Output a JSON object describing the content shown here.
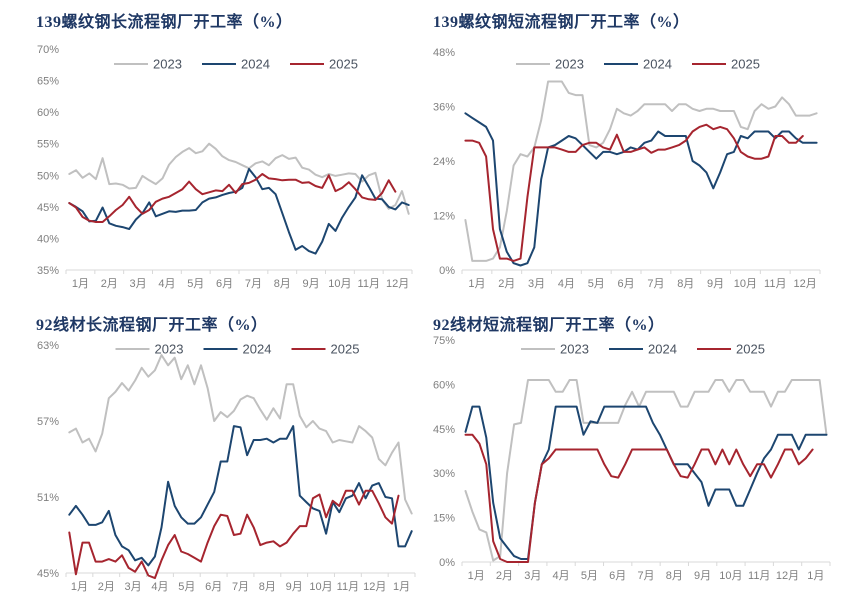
{
  "page_title": "钢厂开工率图表",
  "colors": {
    "title_text": "#1f3864",
    "legend_text": "#4a5360",
    "axis_line": "#d9d9d9",
    "tick_text": "#7f7f7f",
    "series_2023": "#c0c0c0",
    "series_2024": "#1d4670",
    "series_2025": "#a6252f",
    "background": "#ffffff"
  },
  "chart_data": [
    {
      "type": "line",
      "title": "139螺纹钢长流程钢厂开工率（%）",
      "ylim": [
        35,
        70
      ],
      "yticks": [
        35,
        40,
        45,
        50,
        55,
        60,
        65,
        70
      ],
      "ytick_suffix": "%",
      "xlabels": [
        "1月",
        "2月",
        "3月",
        "4月",
        "5月",
        "6月",
        "7月",
        "8月",
        "9月",
        "10月",
        "11月",
        "12月"
      ],
      "x_span": 52,
      "grid": false,
      "legend_position": "top-center",
      "series": [
        {
          "name": "2023",
          "color": "#c0c0c0",
          "values": [
            50.2,
            50.8,
            49.6,
            50.3,
            49.4,
            52.7,
            48.6,
            48.7,
            48.5,
            47.9,
            48.0,
            49.9,
            49.2,
            48.6,
            49.5,
            51.7,
            52.9,
            53.7,
            54.3,
            53.5,
            53.8,
            55.0,
            54.2,
            53.0,
            52.4,
            52.1,
            51.6,
            51.1,
            51.9,
            52.2,
            51.6,
            52.7,
            53.2,
            52.6,
            52.8,
            51.2,
            50.9,
            50.1,
            49.7,
            50.2,
            49.9,
            50.1,
            50.3,
            50.2,
            49.0,
            50.0,
            50.4,
            46.2,
            44.7,
            45.3,
            47.5,
            43.9
          ]
        },
        {
          "name": "2024",
          "color": "#1d4670",
          "values": [
            45.6,
            45.0,
            44.3,
            42.7,
            42.8,
            44.9,
            42.4,
            42.0,
            41.8,
            41.5,
            43.0,
            44.0,
            45.7,
            43.5,
            43.9,
            44.3,
            44.2,
            44.4,
            44.4,
            44.5,
            45.7,
            46.3,
            46.5,
            46.9,
            47.2,
            47.4,
            48.0,
            51.0,
            49.7,
            47.8,
            48.0,
            47.0,
            44.0,
            41.0,
            38.2,
            38.8,
            38.0,
            37.6,
            39.5,
            42.3,
            41.2,
            43.3,
            45.0,
            46.5,
            50.0,
            48.2,
            46.3,
            46.2,
            45.0,
            44.6,
            45.7,
            45.3
          ]
        },
        {
          "name": "2025",
          "color": "#a6252f",
          "values": [
            45.6,
            44.9,
            43.4,
            42.8,
            42.6,
            42.6,
            43.5,
            44.5,
            45.3,
            46.6,
            45.0,
            43.9,
            44.5,
            45.8,
            46.3,
            46.6,
            47.2,
            47.8,
            49.0,
            47.8,
            47.0,
            47.3,
            47.6,
            47.5,
            48.5,
            47.2,
            48.6,
            48.8,
            49.3,
            50.2,
            49.5,
            49.4,
            49.2,
            49.3,
            49.3,
            48.8,
            48.9,
            48.3,
            48.0,
            50.0,
            47.5,
            48.0,
            48.9,
            47.8,
            46.5,
            46.2,
            46.1,
            47.2,
            49.2,
            47.4
          ]
        }
      ]
    },
    {
      "type": "line",
      "title": "139螺纹钢短流程钢厂开工率（%）",
      "ylim": [
        0,
        48
      ],
      "yticks": [
        0,
        12,
        24,
        36,
        48
      ],
      "ytick_suffix": "%",
      "xlabels": [
        "1月",
        "2月",
        "3月",
        "4月",
        "5月",
        "6月",
        "7月",
        "8月",
        "9月",
        "10月",
        "11月",
        "12月"
      ],
      "x_span": 52,
      "grid": false,
      "legend_position": "top-center",
      "series": [
        {
          "name": "2023",
          "color": "#c0c0c0",
          "values": [
            11.0,
            2.0,
            2.0,
            2.0,
            2.5,
            5.0,
            13.0,
            23.0,
            25.5,
            25.0,
            27.0,
            33.0,
            41.5,
            41.5,
            41.5,
            39.0,
            38.5,
            38.5,
            27.5,
            27.0,
            28.0,
            31.0,
            35.5,
            34.5,
            34.0,
            35.0,
            36.5,
            36.5,
            36.5,
            36.5,
            35.0,
            36.5,
            36.5,
            35.5,
            35.0,
            35.5,
            35.5,
            35.0,
            35.0,
            35.0,
            31.5,
            31.0,
            35.0,
            36.5,
            35.5,
            36.0,
            38.0,
            36.5,
            34.0,
            34.0,
            34.0,
            34.5
          ]
        },
        {
          "name": "2024",
          "color": "#1d4670",
          "values": [
            34.5,
            33.5,
            32.5,
            31.5,
            28.5,
            9.0,
            4.0,
            1.5,
            1.0,
            1.5,
            5.0,
            20.0,
            27.0,
            27.5,
            28.5,
            29.5,
            29.0,
            27.5,
            26.0,
            24.5,
            26.0,
            26.0,
            25.5,
            26.0,
            27.0,
            26.5,
            28.0,
            28.5,
            30.5,
            29.5,
            29.5,
            29.5,
            29.5,
            24.0,
            23.0,
            21.5,
            18.0,
            21.5,
            25.5,
            26.0,
            29.5,
            29.0,
            30.5,
            30.5,
            30.5,
            29.0,
            30.5,
            30.5,
            29.0,
            28.0,
            28.0,
            28.0
          ]
        },
        {
          "name": "2025",
          "color": "#a6252f",
          "values": [
            28.5,
            28.5,
            28.0,
            25.0,
            9.0,
            2.5,
            2.5,
            2.0,
            2.5,
            16.0,
            27.0,
            27.0,
            27.0,
            27.0,
            26.5,
            26.0,
            26.0,
            27.5,
            28.0,
            28.0,
            27.0,
            26.5,
            29.8,
            26.0,
            26.0,
            26.5,
            27.0,
            25.8,
            26.5,
            26.5,
            27.0,
            27.5,
            28.5,
            30.5,
            31.5,
            32.0,
            31.0,
            31.5,
            31.0,
            29.0,
            26.0,
            25.0,
            24.5,
            24.5,
            25.0,
            29.5,
            29.5,
            28.0,
            28.0,
            29.5
          ]
        }
      ]
    },
    {
      "type": "line",
      "title": "92线材长流程钢厂开工率（%）",
      "ylim": [
        45,
        63
      ],
      "yticks": [
        45,
        51,
        57,
        63
      ],
      "ytick_suffix": "%",
      "xlabels": [
        "1月",
        "2月",
        "3月",
        "4月",
        "5月",
        "6月",
        "7月",
        "8月",
        "9月",
        "10月",
        "11月",
        "12月",
        "1月"
      ],
      "x_span": 53,
      "grid": false,
      "legend_position": "top-center",
      "series": [
        {
          "name": "2023",
          "color": "#c0c0c0",
          "values": [
            56.1,
            56.4,
            55.3,
            55.6,
            54.6,
            56.0,
            58.8,
            59.3,
            60.0,
            59.4,
            60.2,
            61.2,
            60.5,
            61.0,
            62.2,
            61.4,
            62.0,
            60.3,
            61.4,
            59.9,
            61.4,
            59.6,
            57.0,
            57.7,
            57.3,
            57.8,
            58.7,
            59.0,
            58.8,
            57.9,
            57.1,
            58.0,
            57.2,
            59.9,
            59.9,
            57.4,
            56.5,
            57.0,
            56.4,
            56.2,
            55.3,
            55.5,
            55.4,
            55.3,
            56.6,
            56.2,
            55.7,
            54.0,
            53.5,
            54.5,
            55.3,
            50.8,
            49.7
          ]
        },
        {
          "name": "2024",
          "color": "#1d4670",
          "values": [
            49.6,
            50.3,
            49.6,
            48.8,
            48.8,
            49.0,
            49.9,
            48.0,
            47.1,
            46.8,
            46.0,
            46.2,
            45.6,
            46.3,
            48.6,
            52.2,
            50.3,
            49.4,
            48.9,
            48.9,
            49.4,
            50.4,
            51.4,
            53.8,
            53.8,
            56.6,
            56.5,
            54.3,
            55.5,
            55.5,
            55.6,
            55.3,
            55.6,
            55.6,
            56.6,
            51.1,
            50.6,
            50.1,
            49.9,
            48.1,
            50.6,
            49.8,
            50.9,
            51.1,
            52.1,
            50.9,
            51.9,
            52.1,
            51.0,
            50.9,
            47.1,
            47.1,
            48.3
          ]
        },
        {
          "name": "2025",
          "color": "#a6252f",
          "values": [
            48.2,
            44.9,
            47.4,
            47.4,
            45.9,
            45.9,
            46.1,
            45.9,
            46.4,
            45.4,
            45.1,
            45.9,
            44.8,
            44.6,
            46.0,
            47.2,
            48.0,
            46.7,
            46.5,
            46.2,
            45.9,
            47.4,
            48.7,
            49.6,
            49.5,
            48.0,
            48.1,
            49.6,
            48.6,
            47.2,
            47.4,
            47.5,
            47.1,
            47.4,
            48.1,
            48.7,
            48.7,
            50.9,
            51.2,
            49.4,
            50.7,
            50.3,
            51.5,
            51.5,
            50.4,
            51.5,
            51.5,
            50.5,
            49.4,
            48.9,
            51.1
          ]
        }
      ]
    },
    {
      "type": "line",
      "title": "92线材短流程钢厂开工率（%）",
      "ylim": [
        0,
        75
      ],
      "yticks": [
        0,
        15,
        30,
        45,
        60,
        75
      ],
      "ytick_suffix": "%",
      "xlabels": [
        "1月",
        "2月",
        "3月",
        "4月",
        "5月",
        "6月",
        "7月",
        "8月",
        "9月",
        "10月",
        "11月",
        "12月",
        "1月"
      ],
      "x_span": 53,
      "grid": false,
      "legend_position": "top-center",
      "series": [
        {
          "name": "2023",
          "color": "#c0c0c0",
          "values": [
            24,
            17,
            11,
            10,
            0.5,
            2,
            30,
            46.5,
            47,
            61.5,
            61.5,
            61.5,
            61.5,
            57.5,
            57.5,
            61.5,
            61.5,
            47,
            47,
            47,
            47,
            47,
            47,
            53,
            57.5,
            52.5,
            57.5,
            57.5,
            57.5,
            57.5,
            57.5,
            52.5,
            52.5,
            57.5,
            57.5,
            57.5,
            61.5,
            61.5,
            57.5,
            61.5,
            61.5,
            57.5,
            57.5,
            57.5,
            52.5,
            57.5,
            57.5,
            61.5,
            61.5,
            61.5,
            61.5,
            61.5,
            43
          ]
        },
        {
          "name": "2024",
          "color": "#1d4670",
          "values": [
            44,
            52.5,
            52.5,
            42,
            20,
            8,
            5,
            2,
            1,
            1,
            20,
            33,
            38,
            52.5,
            52.5,
            52.5,
            52.5,
            43,
            47.5,
            47,
            52.5,
            52.5,
            52.5,
            52.5,
            52.5,
            52.5,
            52.5,
            47,
            43,
            38,
            33,
            33,
            33,
            30,
            27,
            19,
            24.5,
            24.5,
            24.5,
            19,
            19,
            24.5,
            30,
            35,
            38,
            43,
            43,
            43,
            38,
            43,
            43,
            43,
            43
          ]
        },
        {
          "name": "2025",
          "color": "#a6252f",
          "values": [
            43,
            43,
            40,
            33,
            7,
            1,
            0,
            0,
            0,
            0,
            20,
            33,
            35,
            38,
            38,
            38,
            38,
            38,
            38,
            38,
            33,
            29,
            28.5,
            33,
            38,
            38,
            38,
            38,
            38,
            38,
            33,
            29,
            28.5,
            33,
            38,
            38,
            33,
            38,
            33,
            38,
            33,
            29,
            33,
            33,
            28.5,
            33,
            38,
            38,
            33,
            35,
            38
          ]
        }
      ]
    }
  ]
}
